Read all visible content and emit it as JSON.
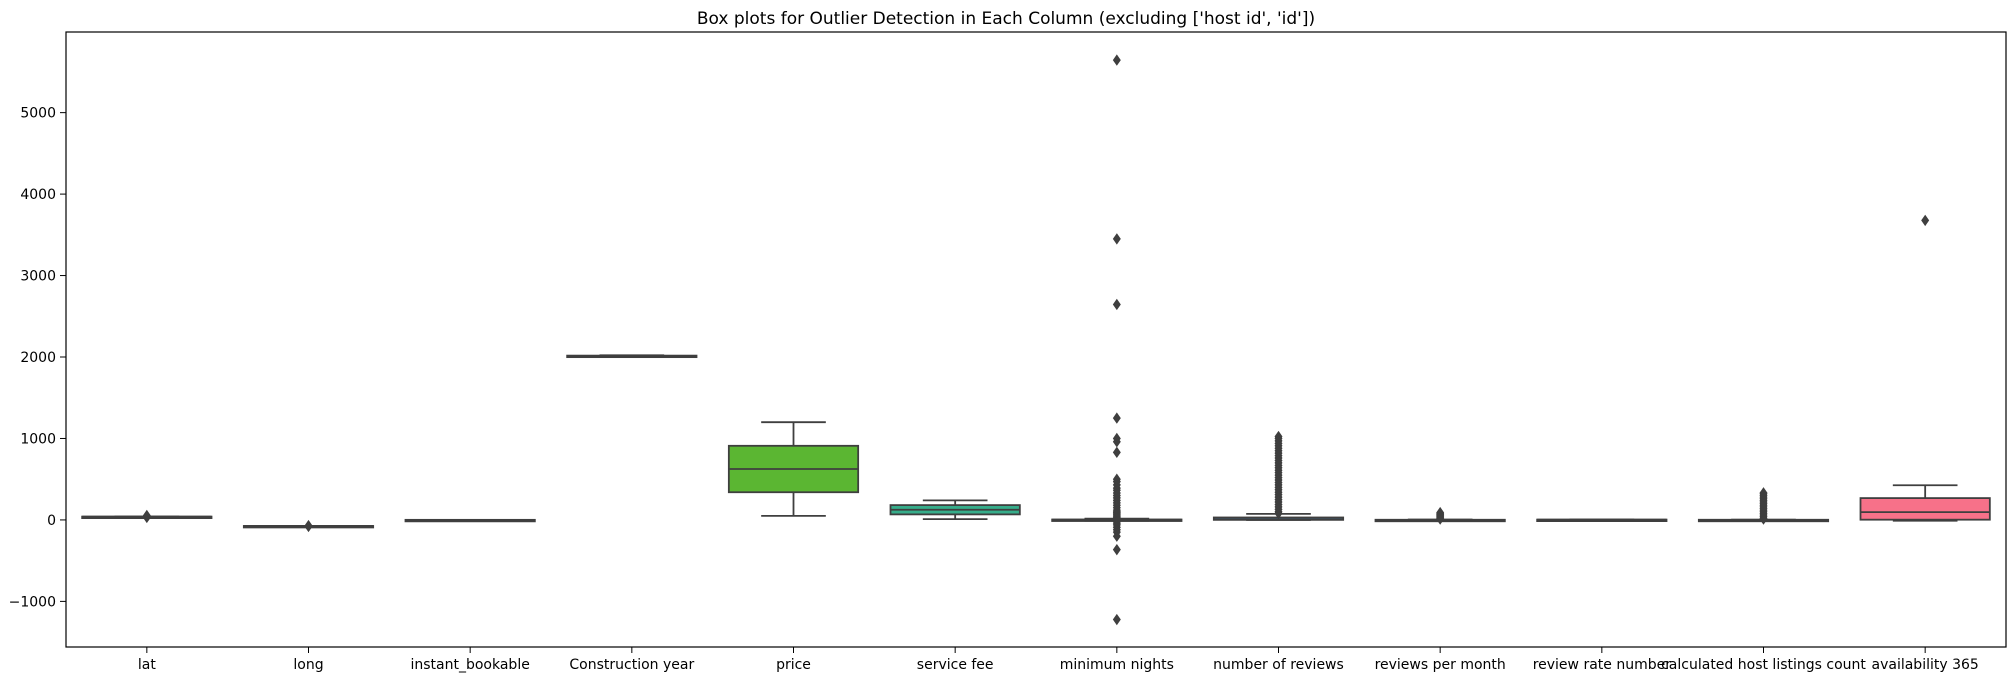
{
  "chart_data": {
    "type": "box",
    "title": "Box plots for Outlier Detection in Each Column (excluding ['host id', 'id'])",
    "xlabel": "",
    "ylabel": "",
    "ylim": [
      -1560,
      5990
    ],
    "yticks": [
      -1000,
      0,
      1000,
      2000,
      3000,
      4000,
      5000
    ],
    "grid": false,
    "categories": [
      "lat",
      "long",
      "instant_bookable",
      "Construction year",
      "price",
      "service fee",
      "minimum nights",
      "number of reviews",
      "reviews per month",
      "review rate number",
      "calculated host listings count",
      "availability 365"
    ],
    "boxes": [
      {
        "name": "lat",
        "color": "#f77189",
        "whisker_low": 40.5,
        "q1": 40.69,
        "median": 40.72,
        "q3": 40.76,
        "whisker_high": 40.9,
        "outliers": [
          30,
          45,
          55
        ]
      },
      {
        "name": "long",
        "color": "#dc8932",
        "whisker_low": -74.25,
        "q1": -73.98,
        "median": -73.95,
        "q3": -73.93,
        "whisker_high": -73.7,
        "outliers": [
          -70,
          -75,
          -80
        ]
      },
      {
        "name": "instant_bookable",
        "color": "#ae9d31",
        "whisker_low": 0,
        "q1": 0,
        "median": 0,
        "q3": 1,
        "whisker_high": 1,
        "outliers": []
      },
      {
        "name": "Construction year",
        "color": "#77ab31",
        "whisker_low": 2003,
        "q1": 2008,
        "median": 2012,
        "q3": 2017,
        "whisker_high": 2022,
        "outliers": []
      },
      {
        "name": "price",
        "color": "#5bb632",
        "whisker_low": 50,
        "q1": 340,
        "median": 625,
        "q3": 910,
        "whisker_high": 1200,
        "outliers": []
      },
      {
        "name": "service fee",
        "color": "#36ad8a",
        "whisker_low": 10,
        "q1": 68,
        "median": 125,
        "q3": 182,
        "whisker_high": 240,
        "outliers": []
      },
      {
        "name": "minimum nights",
        "color": "#38aaac",
        "whisker_low": -10,
        "q1": 2,
        "median": 3,
        "q3": 5,
        "whisker_high": 15,
        "outliers": [
          5645,
          3450,
          2645,
          1250,
          1000,
          960,
          830,
          500,
          470,
          430,
          390,
          365,
          330,
          300,
          270,
          240,
          210,
          180,
          150,
          120,
          100,
          90,
          75,
          60,
          45,
          30,
          20,
          -20,
          -40,
          -60,
          -90,
          -120,
          -150,
          -200,
          -365,
          -1223
        ]
      },
      {
        "name": "number of reviews",
        "color": "#3ba3ec",
        "whisker_low": 0,
        "q1": 1,
        "median": 7,
        "q3": 30,
        "whisker_high": 74,
        "outliers": [
          1024,
          1000,
          970,
          940,
          910,
          880,
          850,
          820,
          790,
          760,
          730,
          700,
          670,
          640,
          610,
          580,
          550,
          520,
          490,
          460,
          430,
          400,
          370,
          340,
          310,
          280,
          250,
          220,
          190,
          160,
          130,
          100,
          80
        ]
      },
      {
        "name": "reviews per month",
        "color": "#a48cf4",
        "whisker_low": 0,
        "q1": 0.22,
        "median": 0.74,
        "q3": 2.0,
        "whisker_high": 4.6,
        "outliers": [
          90,
          80,
          70,
          60,
          50,
          40,
          30,
          20,
          10
        ]
      },
      {
        "name": "review rate number",
        "color": "#e866f4",
        "whisker_low": 1,
        "q1": 2,
        "median": 3,
        "q3": 4,
        "whisker_high": 5,
        "outliers": []
      },
      {
        "name": "calculated host listings count",
        "color": "#f668c2",
        "whisker_low": 1,
        "q1": 1,
        "median": 1,
        "q3": 2,
        "whisker_high": 3.5,
        "outliers": [
          332,
          320,
          300,
          280,
          260,
          240,
          220,
          200,
          180,
          160,
          140,
          120,
          100,
          80,
          60,
          40,
          20,
          10
        ]
      },
      {
        "name": "availability 365",
        "color": "#f77189",
        "whisker_low": -10,
        "q1": 3,
        "median": 96,
        "q3": 268,
        "whisker_high": 426,
        "outliers": [
          3677
        ]
      }
    ]
  }
}
